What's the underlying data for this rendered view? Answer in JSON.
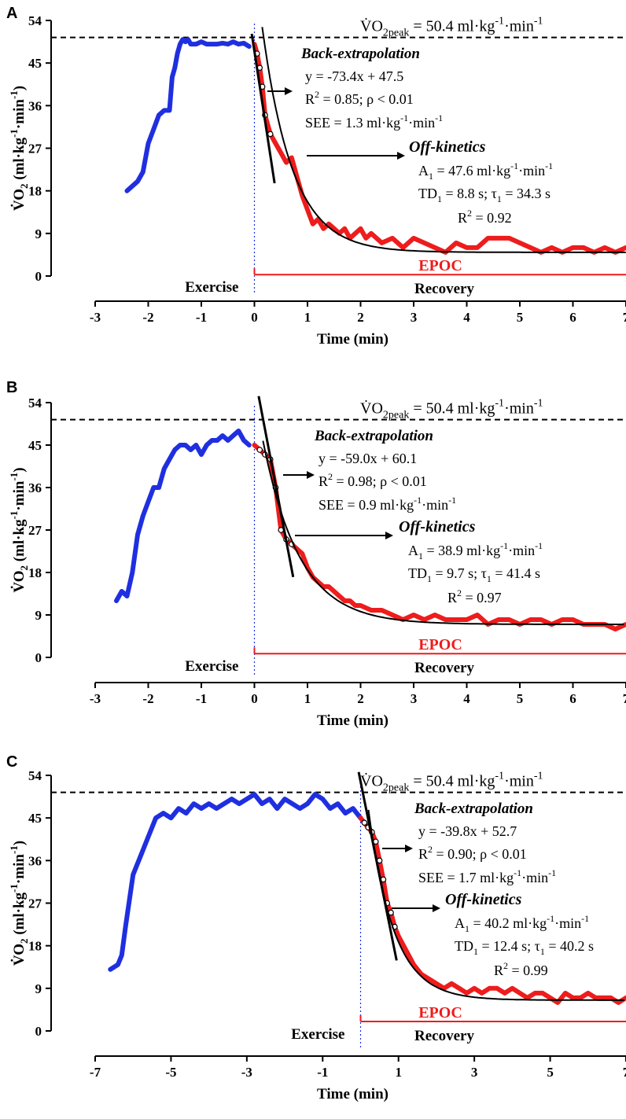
{
  "chart_data": [
    {
      "panel": "A",
      "type": "line",
      "xlabel": "Time (min)",
      "ylabel": "VO2 (ml·kg-1·min-1)",
      "xlim": [
        -3,
        7
      ],
      "ylim": [
        0,
        54
      ],
      "xticks": [
        "-3",
        "-2",
        "-1",
        "0",
        "1",
        "2",
        "3",
        "4",
        "5",
        "6",
        "7"
      ],
      "yticks": [
        "0",
        "9",
        "18",
        "27",
        "36",
        "45",
        "54"
      ],
      "peak": {
        "prefix": "V̇O",
        "sub": "2peak",
        "text": " = 50.4 ml·kg",
        "sup": "-1",
        "tail": "·min",
        "sup2": "-1",
        "value": 50.4
      },
      "series": [
        {
          "role": "exercise",
          "color": "#1f2fe0",
          "x": [
            -2.4,
            -2.3,
            -2.2,
            -2.1,
            -2.0,
            -1.9,
            -1.8,
            -1.75,
            -1.7,
            -1.6,
            -1.55,
            -1.5,
            -1.45,
            -1.4,
            -1.35,
            -1.3,
            -1.25,
            -1.2,
            -1.1,
            -1.0,
            -0.9,
            -0.8,
            -0.7,
            -0.6,
            -0.5,
            -0.4,
            -0.3,
            -0.2,
            -0.1
          ],
          "y": [
            18,
            19,
            20,
            22,
            28,
            31,
            34,
            34.5,
            35,
            35,
            42,
            44,
            47,
            49,
            50,
            49.5,
            50,
            49,
            49,
            49.5,
            49,
            49,
            49,
            49.2,
            49,
            49.5,
            49,
            49.2,
            48.5
          ]
        },
        {
          "role": "recovery",
          "color": "#ee1c1c",
          "x": [
            0,
            0.05,
            0.1,
            0.15,
            0.2,
            0.3,
            0.4,
            0.5,
            0.6,
            0.7,
            0.8,
            0.9,
            1.0,
            1.1,
            1.2,
            1.3,
            1.4,
            1.5,
            1.6,
            1.7,
            1.8,
            1.9,
            2.0,
            2.1,
            2.2,
            2.4,
            2.6,
            2.8,
            3.0,
            3.2,
            3.4,
            3.6,
            3.8,
            4.0,
            4.2,
            4.4,
            4.6,
            4.8,
            5.0,
            5.2,
            5.4,
            5.6,
            5.8,
            6.0,
            6.2,
            6.4,
            6.6,
            6.8,
            7.0
          ],
          "y": [
            49,
            47,
            44,
            40,
            34,
            30,
            28,
            26,
            24,
            25,
            21,
            17,
            14,
            11,
            12,
            10,
            11,
            10,
            9,
            10,
            8,
            9,
            10,
            8,
            9,
            7,
            8,
            6,
            8,
            7,
            6,
            5,
            7,
            6,
            6,
            8,
            8,
            8,
            7,
            6,
            5,
            6,
            5,
            6,
            6,
            5,
            6,
            5,
            6
          ]
        },
        {
          "role": "fit",
          "color": "#000000",
          "A": 47.6,
          "tau_min": 0.572,
          "td_min": 0.147,
          "base": 5.0
        }
      ],
      "regression": {
        "slope": -73.4,
        "intercept": 47.5,
        "x": [
          -0.05,
          0.38
        ]
      },
      "boundary_x": 0,
      "epoc": {
        "y": 0.3,
        "x": [
          0,
          7
        ],
        "label": "EPOC"
      },
      "annotations": {
        "back_title": "Back-extrapolation",
        "back_eq": "y = -73.4x + 47.5",
        "back_r2": "R",
        "back_r2_rest": " = 0.85; ρ < 0.01",
        "back_see": "SEE = 1.3 ml·kg",
        "back_see_tail": "·min",
        "off_title": "Off-kinetics",
        "off_a": " = 47.6 ml·kg",
        "off_td": " = 8.8 s; τ",
        "off_td_tail": " = 34.3 s",
        "off_r2": " = 0.92"
      },
      "region_labels": [
        "Exercise",
        "Recovery"
      ]
    },
    {
      "panel": "B",
      "type": "line",
      "xlabel": "Time (min)",
      "ylabel": "VO2 (ml·kg-1·min-1)",
      "xlim": [
        -3,
        7
      ],
      "ylim": [
        0,
        54
      ],
      "xticks": [
        "-3",
        "-2",
        "-1",
        "0",
        "1",
        "2",
        "3",
        "4",
        "5",
        "6",
        "7"
      ],
      "yticks": [
        "0",
        "9",
        "18",
        "27",
        "36",
        "45",
        "54"
      ],
      "peak": {
        "prefix": "V̇O",
        "sub": "2peak",
        "text": " = 50.4 ml·kg",
        "sup": "-1",
        "tail": "·min",
        "sup2": "-1",
        "value": 50.4
      },
      "series": [
        {
          "role": "exercise",
          "color": "#1f2fe0",
          "x": [
            -2.6,
            -2.5,
            -2.4,
            -2.3,
            -2.2,
            -2.1,
            -2.0,
            -1.9,
            -1.8,
            -1.7,
            -1.6,
            -1.5,
            -1.4,
            -1.3,
            -1.2,
            -1.1,
            -1.0,
            -0.9,
            -0.8,
            -0.7,
            -0.6,
            -0.5,
            -0.4,
            -0.3,
            -0.2,
            -0.1
          ],
          "y": [
            12,
            14,
            13,
            18,
            26,
            30,
            33,
            36,
            36,
            40,
            42,
            44,
            45,
            45,
            44,
            45,
            43,
            45,
            46,
            46,
            47,
            46,
            47,
            48,
            46,
            45
          ]
        },
        {
          "role": "recovery",
          "color": "#ee1c1c",
          "x": [
            0,
            0.1,
            0.2,
            0.3,
            0.4,
            0.5,
            0.6,
            0.7,
            0.8,
            0.9,
            1.0,
            1.1,
            1.2,
            1.3,
            1.4,
            1.5,
            1.6,
            1.7,
            1.8,
            1.9,
            2.0,
            2.2,
            2.4,
            2.6,
            2.8,
            3.0,
            3.2,
            3.4,
            3.6,
            3.8,
            4.0,
            4.2,
            4.4,
            4.6,
            4.8,
            5.0,
            5.2,
            5.4,
            5.6,
            5.8,
            6.0,
            6.2,
            6.4,
            6.6,
            6.8,
            7.0
          ],
          "y": [
            45,
            44,
            43,
            42,
            36,
            27,
            25,
            24,
            23,
            22,
            19,
            17,
            16,
            15,
            15,
            14,
            13,
            12,
            12,
            11,
            11,
            10,
            10,
            9,
            8,
            9,
            8,
            9,
            8,
            8,
            8,
            9,
            7,
            8,
            8,
            7,
            8,
            8,
            7,
            8,
            8,
            7,
            7,
            7,
            6,
            7
          ]
        },
        {
          "role": "fit",
          "color": "#000000",
          "A": 38.9,
          "tau_min": 0.69,
          "td_min": 0.162,
          "base": 7.0
        }
      ],
      "regression": {
        "slope": -59.0,
        "intercept": 60.1,
        "x": [
          0.08,
          0.73
        ]
      },
      "boundary_x": 0,
      "epoc": {
        "y": 0.8,
        "x": [
          0,
          7
        ],
        "label": "EPOC"
      },
      "annotations": {
        "back_title": "Back-extrapolation",
        "back_eq": "y = -59.0x + 60.1",
        "back_r2": "R",
        "back_r2_rest": " = 0.98; ρ < 0.01",
        "back_see": "SEE = 0.9 ml·kg",
        "back_see_tail": "·min",
        "off_title": "Off-kinetics",
        "off_a": " = 38.9 ml·kg",
        "off_td": " = 9.7 s; τ",
        "off_td_tail": " = 41.4 s",
        "off_r2": " = 0.97"
      },
      "region_labels": [
        "Exercise",
        "Recovery"
      ]
    },
    {
      "panel": "C",
      "type": "line",
      "xlabel": "Time (min)",
      "ylabel": "VO2 (ml·kg-1·min-1)",
      "xlim": [
        -7,
        7
      ],
      "ylim": [
        0,
        54
      ],
      "xticks": [
        "-7",
        "-5",
        "-3",
        "-1",
        "1",
        "3",
        "5",
        "7"
      ],
      "xtick_values": [
        -7,
        -5,
        -3,
        -1,
        1,
        3,
        5,
        7
      ],
      "yticks": [
        "0",
        "9",
        "18",
        "27",
        "36",
        "45",
        "54"
      ],
      "peak": {
        "prefix": "V̇O",
        "sub": "2peak",
        "text": " = 50.4 ml·kg",
        "sup": "-1",
        "tail": "·min",
        "sup2": "-1",
        "value": 50.4
      },
      "series": [
        {
          "role": "exercise",
          "color": "#1f2fe0",
          "x": [
            -6.6,
            -6.4,
            -6.3,
            -6.2,
            -6.0,
            -5.9,
            -5.8,
            -5.6,
            -5.4,
            -5.2,
            -5.0,
            -4.8,
            -4.6,
            -4.4,
            -4.2,
            -4.0,
            -3.8,
            -3.6,
            -3.4,
            -3.2,
            -3.0,
            -2.8,
            -2.6,
            -2.4,
            -2.2,
            -2.0,
            -1.8,
            -1.6,
            -1.4,
            -1.2,
            -1.0,
            -0.8,
            -0.6,
            -0.4,
            -0.2,
            0
          ],
          "y": [
            13,
            14,
            16,
            22,
            33,
            35,
            37,
            41,
            45,
            46,
            45,
            47,
            46,
            48,
            47,
            48,
            47,
            48,
            49,
            48,
            49,
            50,
            48,
            49,
            47,
            49,
            48,
            47,
            48,
            50,
            49,
            47,
            48,
            46,
            47,
            45
          ]
        },
        {
          "role": "recovery",
          "color": "#ee1c1c",
          "x": [
            0,
            0.1,
            0.2,
            0.3,
            0.4,
            0.5,
            0.6,
            0.7,
            0.8,
            0.9,
            1.0,
            1.2,
            1.4,
            1.6,
            1.8,
            2.0,
            2.2,
            2.4,
            2.6,
            2.8,
            3.0,
            3.2,
            3.4,
            3.6,
            3.8,
            4.0,
            4.2,
            4.4,
            4.6,
            4.8,
            5.0,
            5.2,
            5.4,
            5.6,
            5.8,
            6.0,
            6.2,
            6.4,
            6.6,
            6.8,
            7.0
          ],
          "y": [
            45,
            44,
            43,
            42,
            40,
            36,
            32,
            27,
            25,
            22,
            20,
            17,
            14,
            12,
            11,
            10,
            9,
            10,
            9,
            8,
            9,
            8,
            9,
            9,
            8,
            9,
            8,
            7,
            8,
            8,
            7,
            6,
            8,
            7,
            7,
            8,
            7,
            7,
            7,
            6,
            7
          ]
        },
        {
          "role": "fit",
          "color": "#000000",
          "A": 40.2,
          "tau_min": 0.67,
          "td_min": 0.207,
          "base": 6.5
        }
      ],
      "regression": {
        "slope": -39.8,
        "intercept": 52.7,
        "x": [
          -0.05,
          0.95
        ]
      },
      "boundary_x": 0,
      "epoc": {
        "y": 2.0,
        "x": [
          0,
          7
        ],
        "label": "EPOC"
      },
      "annotations": {
        "back_title": "Back-extrapolation",
        "back_eq": "y = -39.8x + 52.7",
        "back_r2": "R",
        "back_r2_rest": " = 0.90; ρ < 0.01",
        "back_see": "SEE = 1.7 ml·kg",
        "back_see_tail": "·min",
        "off_title": "Off-kinetics",
        "off_a": " = 40.2 ml·kg",
        "off_td": " = 12.4 s; τ",
        "off_td_tail": " = 40.2 s",
        "off_r2": " = 0.99"
      },
      "region_labels": [
        "Exercise",
        "Recovery"
      ]
    }
  ]
}
